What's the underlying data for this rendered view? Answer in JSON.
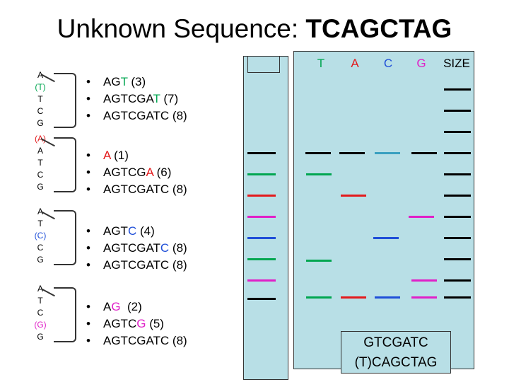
{
  "title": {
    "prefix": "Unknown Sequence:",
    "sequence": "TCAGCTAG"
  },
  "lanes": {
    "t": "T",
    "a": "A",
    "c": "C",
    "g": "G",
    "size": "SIZE"
  },
  "templates": [
    {
      "bases": [
        "A",
        "(T)",
        "T",
        "C",
        "G"
      ],
      "highlight_index": 1,
      "highlight_color": "#00a650"
    },
    {
      "bases": [
        "(A)",
        "A",
        "T",
        "C",
        "G"
      ],
      "highlight_index": 0,
      "highlight_color": "#e31a1c"
    },
    {
      "bases": [
        "A",
        "T",
        "(C)",
        "C",
        "G"
      ],
      "highlight_index": 2,
      "highlight_color": "#1f4fd8"
    },
    {
      "bases": [
        "A",
        "T",
        "C",
        "(G)",
        "G"
      ],
      "highlight_index": 3,
      "highlight_color": "#e020c8"
    }
  ],
  "reads": [
    [
      {
        "base": "AG",
        "last": "T",
        "size": " (3)",
        "color": "green"
      },
      {
        "base": "AGTCGA",
        "last": "T",
        "size": " (7)",
        "color": "green"
      },
      {
        "base": "AGTCGATC",
        "last": "",
        "size": " (8)",
        "color": ""
      }
    ],
    [
      {
        "base": "",
        "last": "A",
        "size": " (1)",
        "color": "red"
      },
      {
        "base": "AGTCG",
        "last": "A",
        "size": " (6)",
        "color": "red"
      },
      {
        "base": "AGTCGATC",
        "last": "",
        "size": " (8)",
        "color": ""
      }
    ],
    [
      {
        "base": "AGT",
        "last": "C",
        "size": " (4)",
        "color": "blue"
      },
      {
        "base": "AGTCGAT",
        "last": "C",
        "size": " (8)",
        "color": "blue"
      },
      {
        "base": "AGTCGATC",
        "last": "",
        "size": " (8)",
        "color": ""
      }
    ],
    [
      {
        "base": "A",
        "last": "G",
        "size": "  (2)",
        "color": "pink"
      },
      {
        "base": "AGTC",
        "last": "G",
        "size": " (5)",
        "color": "pink"
      },
      {
        "base": "AGTCGATC",
        "last": "",
        "size": " (8)",
        "color": ""
      }
    ]
  ],
  "result": {
    "line1": "GTCGATC",
    "line2": "(T)CAGCTAG"
  },
  "colors": {
    "gel": "#b8dfe6",
    "black": "#000000",
    "green": "#00a650",
    "red": "#e31a1c",
    "pink": "#e020c8",
    "blue": "#1f4fd8",
    "lightblue": "#3aa0c0"
  }
}
